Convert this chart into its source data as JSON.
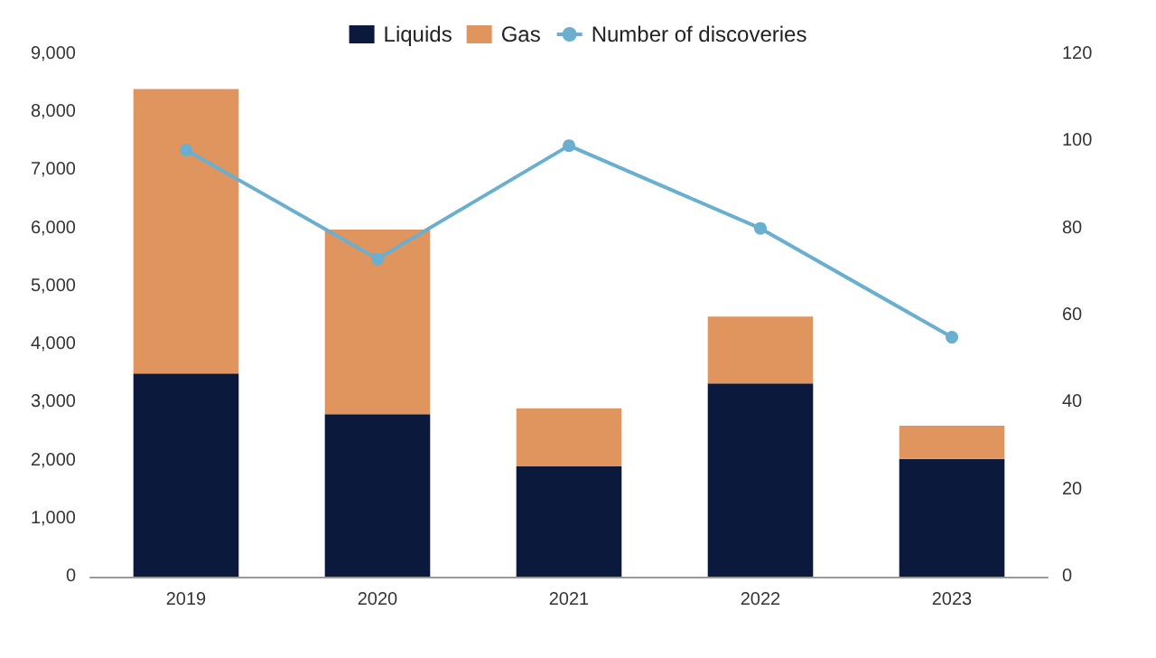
{
  "chart_data": {
    "type": "bar",
    "stacked": true,
    "categories": [
      "2019",
      "2020",
      "2021",
      "2022",
      "2023"
    ],
    "series": [
      {
        "name": "Liquids",
        "color": "#0b1a3c",
        "values": [
          3500,
          2800,
          1900,
          3330,
          2030
        ]
      },
      {
        "name": "Gas",
        "color": "#e0955e",
        "values": [
          4900,
          3180,
          1000,
          1150,
          570
        ]
      },
      {
        "name": "Number of discoveries",
        "type": "line",
        "axis": "y2",
        "color": "#6aaed0",
        "marker": "circle",
        "values": [
          98,
          73,
          99,
          80,
          55
        ]
      }
    ],
    "ylim": [
      0,
      9000
    ],
    "yticks": [
      {
        "value": 0,
        "label": "0"
      },
      {
        "value": 1000,
        "label": "1,000"
      },
      {
        "value": 2000,
        "label": "2,000"
      },
      {
        "value": 3000,
        "label": "3,000"
      },
      {
        "value": 4000,
        "label": "4,000"
      },
      {
        "value": 5000,
        "label": "5,000"
      },
      {
        "value": 6000,
        "label": "6,000"
      },
      {
        "value": 7000,
        "label": "7,000"
      },
      {
        "value": 8000,
        "label": "8,000"
      },
      {
        "value": 9000,
        "label": "9,000"
      }
    ],
    "y2lim": [
      0,
      120
    ],
    "y2ticks": [
      0,
      20,
      40,
      60,
      80,
      100,
      120
    ],
    "grid": false,
    "legend": "top"
  }
}
